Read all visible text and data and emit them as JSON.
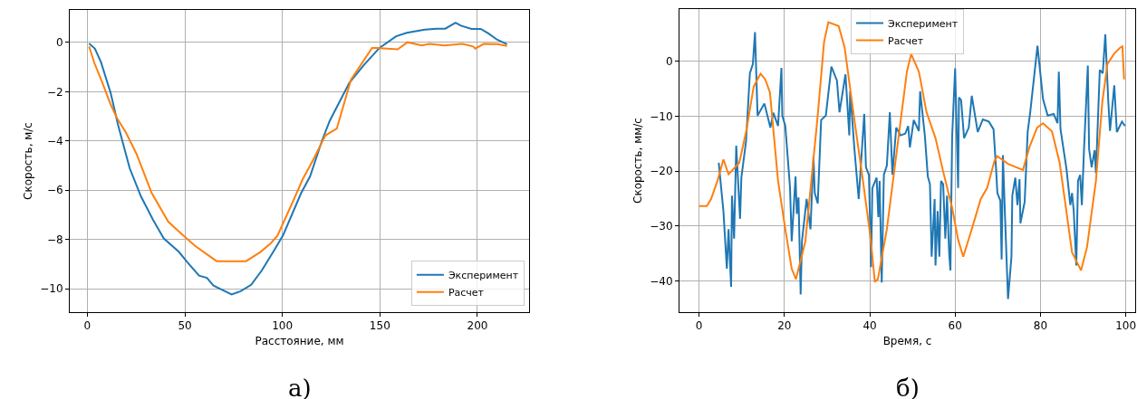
{
  "chart_data": [
    {
      "type": "line",
      "xlabel": "Расстояние, мм",
      "ylabel": "Скорость, м/с",
      "annotations": [
        "а)"
      ],
      "xlim": [
        -9,
        226.5
      ],
      "ylim": [
        -10.95,
        1.32
      ],
      "xticks": [
        0,
        50,
        100,
        150,
        200
      ],
      "yticks": [
        -10,
        -8,
        -6,
        -4,
        -2,
        0
      ],
      "grid": true,
      "legend": "bottom right",
      "line_style": "solid",
      "series": [
        {
          "name": "Эксперимент",
          "color": "#1f77b4",
          "x": [
            0.9,
            3.9,
            7,
            12,
            15.6,
            21.7,
            27.5,
            33.7,
            39.2,
            46.9,
            51.5,
            57.3,
            61.3,
            64.7,
            74,
            78.6,
            84,
            89.5,
            95.7,
            100.3,
            109.6,
            114.2,
            120.4,
            124.3,
            134.4,
            142,
            149.8,
            158.3,
            163.8,
            173,
            179.2,
            183.5,
            188.8,
            191.6,
            197,
            201.7,
            205.6,
            210.2,
            215.2
          ],
          "values": [
            -0.04,
            -0.25,
            -0.8,
            -2.06,
            -3.3,
            -5.1,
            -6.25,
            -7.2,
            -7.96,
            -8.5,
            -8.94,
            -9.47,
            -9.56,
            -9.87,
            -10.23,
            -10.1,
            -9.84,
            -9.25,
            -8.45,
            -7.84,
            -6.12,
            -5.44,
            -3.97,
            -3.18,
            -1.63,
            -0.9,
            -0.22,
            0.25,
            0.39,
            0.52,
            0.56,
            0.56,
            0.8,
            0.68,
            0.55,
            0.55,
            0.37,
            0.11,
            -0.07
          ]
        },
        {
          "name": "Расчет",
          "color": "#ff7f0e",
          "x": [
            0.9,
            3.6,
            7.4,
            11.8,
            15.2,
            19.8,
            25.2,
            33,
            41.5,
            49.2,
            55.4,
            66.3,
            81.4,
            88.7,
            94.1,
            97.5,
            104.9,
            110.4,
            115.8,
            122,
            127.9,
            135.2,
            146,
            148.3,
            159.1,
            164.2,
            171.5,
            175.4,
            183.1,
            192.4,
            197.8,
            198.9,
            203.2,
            210.2,
            215.2
          ],
          "values": [
            -0.16,
            -0.83,
            -1.57,
            -2.49,
            -3.07,
            -3.66,
            -4.52,
            -6.11,
            -7.28,
            -7.84,
            -8.27,
            -8.88,
            -8.88,
            -8.51,
            -8.15,
            -7.84,
            -6.55,
            -5.56,
            -4.77,
            -3.78,
            -3.5,
            -1.51,
            -0.22,
            -0.22,
            -0.28,
            0.01,
            -0.12,
            -0.06,
            -0.12,
            -0.06,
            -0.16,
            -0.25,
            -0.06,
            -0.07,
            -0.14
          ]
        }
      ]
    },
    {
      "type": "line",
      "xlabel": "Время, с",
      "ylabel": "Скорость, мм/с",
      "annotations": [
        "б)"
      ],
      "xlim": [
        -4.6,
        102.2
      ],
      "ylim": [
        -45.7,
        9.5
      ],
      "xticks": [
        0,
        20,
        40,
        60,
        80,
        100
      ],
      "yticks": [
        -40,
        -30,
        -20,
        -10,
        0
      ],
      "grid": true,
      "legend": "top",
      "line_style": "solid",
      "series": [
        {
          "name": "Эксперимент",
          "color": "#1f77b4",
          "x": [
            4.6,
            5.7,
            6.5,
            6.9,
            7.5,
            7.7,
            8.2,
            8.7,
            9.6,
            9.9,
            11,
            11.9,
            12.6,
            13.1,
            13.7,
            15.3,
            16.7,
            17.4,
            18.5,
            19.3,
            19.5,
            20.2,
            21.3,
            21.7,
            22.6,
            22.9,
            23.3,
            23.8,
            24.1,
            25.2,
            26.1,
            26.8,
            27.1,
            27.8,
            28.6,
            29.7,
            31,
            32.3,
            32.9,
            34.3,
            35.2,
            35.4,
            36.4,
            37.4,
            38.7,
            39.1,
            39.8,
            40.3,
            40.6,
            41.6,
            42,
            42.3,
            42.8,
            43.3,
            44,
            44.7,
            45.3,
            46.2,
            47.2,
            48.3,
            49,
            49.4,
            50.3,
            51.5,
            51.8,
            52.9,
            53.6,
            54.1,
            54.5,
            55.2,
            55.4,
            55.9,
            56.3,
            56.7,
            57.2,
            57.7,
            58.1,
            58.6,
            58.9,
            59.3,
            60,
            60.7,
            60.9,
            61.4,
            62.1,
            63.2,
            63.9,
            65.3,
            66.5,
            67.9,
            69,
            69.6,
            69.9,
            70.6,
            70.9,
            71.2,
            71.7,
            72.4,
            73.2,
            73.4,
            74.1,
            74.6,
            75.1,
            75.3,
            76.3,
            77,
            77.6,
            79.3,
            80.6,
            81.7,
            83.1,
            84,
            84.3,
            84.7,
            86.1,
            87,
            87.4,
            87.8,
            88.4,
            88.8,
            89.3,
            89.7,
            90.2,
            91.1,
            91.4,
            92,
            92.7,
            93,
            93.9,
            94.6,
            95.2,
            95.9,
            96.3,
            97,
            97.3,
            97.9,
            99.1,
            99.8
          ],
          "values": [
            -18.5,
            -27.3,
            -37.8,
            -30.6,
            -41.1,
            -24.5,
            -32.3,
            -15.4,
            -28.7,
            -21.2,
            -14.6,
            -2.2,
            -0.5,
            5.3,
            -9.9,
            -7.7,
            -12.1,
            -9.4,
            -11.8,
            -1.2,
            -9.9,
            -11.8,
            -22.9,
            -32.8,
            -21,
            -27.8,
            -24.8,
            -42.5,
            -32.8,
            -25.1,
            -30.6,
            -17.3,
            -24,
            -25.9,
            -10.7,
            -9.9,
            -1,
            -3.5,
            -9.3,
            -2.4,
            -13.5,
            -5.5,
            -16,
            -25.1,
            -9.6,
            -19.3,
            -20.7,
            -37.5,
            -23.1,
            -21.2,
            -28.4,
            -21.8,
            -40.3,
            -20.7,
            -19,
            -9.3,
            -20.7,
            -12.1,
            -13.5,
            -13.2,
            -11.8,
            -15.7,
            -10.7,
            -12.7,
            -5.5,
            -13.5,
            -21,
            -22.4,
            -35.6,
            -25.1,
            -37.2,
            -27.3,
            -35.6,
            -21.8,
            -22.4,
            -32.3,
            -24.5,
            -35,
            -38.1,
            -13.8,
            -1.3,
            -23.1,
            -6.6,
            -7.1,
            -14,
            -12.1,
            -6.3,
            -12.9,
            -10.6,
            -11,
            -12.4,
            -19.6,
            -24,
            -25.4,
            -36.1,
            -17.1,
            -28.4,
            -43.3,
            -35.6,
            -24.5,
            -21.2,
            -26.2,
            -21.5,
            -29.5,
            -25.6,
            -12.9,
            -9.3,
            2.8,
            -6.9,
            -9.9,
            -9.6,
            -11.3,
            -1.9,
            -12.4,
            -19.6,
            -26.2,
            -24,
            -27.3,
            -37.2,
            -21.8,
            -20.7,
            -26.2,
            -16.2,
            -0.8,
            -16,
            -19.3,
            -16.2,
            -20.4,
            -1.6,
            -2.2,
            4.9,
            -7.4,
            -12.7,
            -6.9,
            -4.4,
            -12.9,
            -11,
            -11.8
          ]
        },
        {
          "name": "Расчет",
          "color": "#ff7f0e",
          "x": [
            0,
            1.8,
            2.8,
            4.3,
            5.7,
            6.9,
            9.4,
            11,
            12.8,
            14.4,
            15.5,
            16.6,
            18.5,
            20.2,
            21.7,
            22.7,
            24.9,
            27.7,
            29.3,
            30.3,
            32.7,
            34.1,
            36.2,
            38.4,
            40.1,
            41.2,
            41.9,
            44,
            46.9,
            48.7,
            49.7,
            51.5,
            53.3,
            55.4,
            57.2,
            59.3,
            60.7,
            61.9,
            63.9,
            66,
            67.5,
            69.2,
            69.9,
            72.4,
            75.9,
            77.4,
            79.2,
            80.6,
            82.7,
            84.5,
            87.4,
            89.5,
            90.9,
            93,
            94.5,
            95.7,
            97.3,
            98.7,
            99.2,
            99.6
          ],
          "values": [
            -26.4,
            -26.4,
            -25.1,
            -21.8,
            -17.9,
            -20.6,
            -18.5,
            -12.9,
            -4.6,
            -2.3,
            -3.3,
            -5.7,
            -21.8,
            -30.6,
            -37.8,
            -39.7,
            -32.8,
            -10.7,
            3.6,
            7.1,
            6.4,
            2.5,
            -9.6,
            -21.8,
            -31.7,
            -40.2,
            -39.7,
            -30.6,
            -12.9,
            -1.9,
            1.3,
            -1.9,
            -9.3,
            -14,
            -20.1,
            -26.7,
            -32.5,
            -35.6,
            -30.6,
            -25.1,
            -23.1,
            -18.2,
            -17.3,
            -18.7,
            -19.8,
            -15.7,
            -12.1,
            -11.3,
            -12.8,
            -18.5,
            -34.8,
            -38.1,
            -33.9,
            -21.8,
            -7.4,
            -0.5,
            1.4,
            2.5,
            2.7,
            -3.3
          ]
        }
      ]
    }
  ]
}
